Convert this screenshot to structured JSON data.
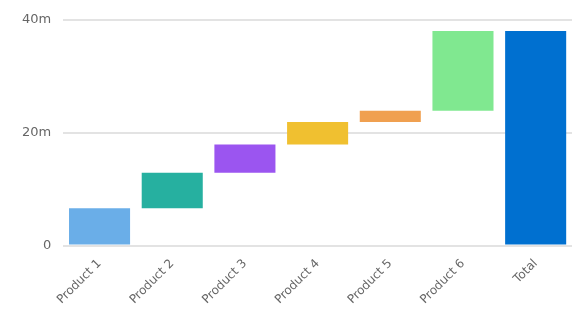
{
  "chart_data": {
    "type": "waterfall",
    "categories": [
      "Product 1",
      "Product 2",
      "Product 3",
      "Product 4",
      "Product 5",
      "Product 6",
      "Total"
    ],
    "values": [
      6.6,
      6.3,
      5.0,
      4.0,
      2.0,
      14.1,
      38.0
    ],
    "colors": [
      "#6aaee8",
      "#26b0a0",
      "#9b55f0",
      "#f0c030",
      "#f0a050",
      "#80e890",
      "#0070d0"
    ],
    "ylim": [
      0,
      40
    ],
    "yticks": [
      0,
      {
        "value": 20,
        "label": "20m"
      },
      {
        "value": 40,
        "label": "40m"
      }
    ],
    "grid": true
  }
}
